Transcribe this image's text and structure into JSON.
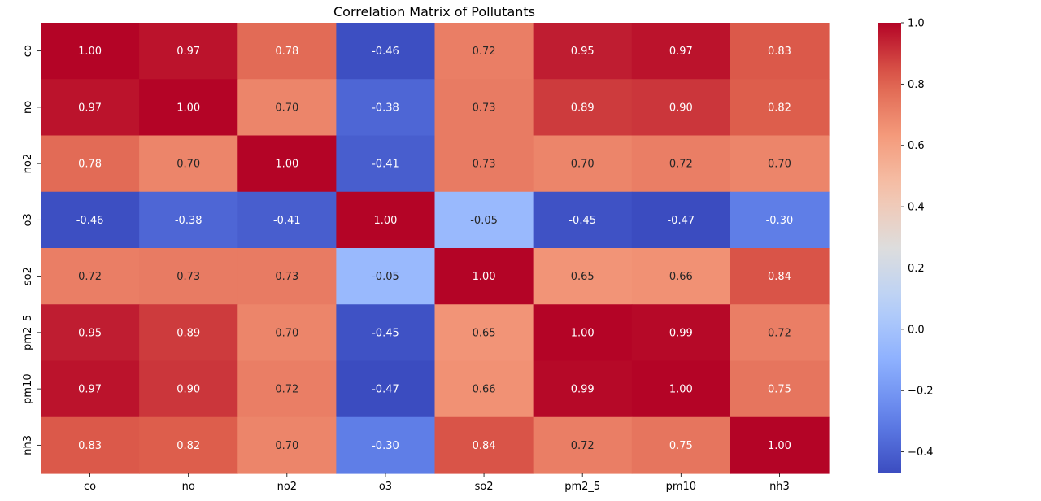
{
  "chart_data": {
    "type": "heatmap",
    "title": "Correlation Matrix of Pollutants",
    "xlabel": "",
    "ylabel": "",
    "x_categories": [
      "co",
      "no",
      "no2",
      "o3",
      "so2",
      "pm2_5",
      "pm10",
      "nh3"
    ],
    "y_categories": [
      "co",
      "no",
      "no2",
      "o3",
      "so2",
      "pm2_5",
      "pm10",
      "nh3"
    ],
    "values": [
      [
        1.0,
        0.97,
        0.78,
        -0.46,
        0.72,
        0.95,
        0.97,
        0.83
      ],
      [
        0.97,
        1.0,
        0.7,
        -0.38,
        0.73,
        0.89,
        0.9,
        0.82
      ],
      [
        0.78,
        0.7,
        1.0,
        -0.41,
        0.73,
        0.7,
        0.72,
        0.7
      ],
      [
        -0.46,
        -0.38,
        -0.41,
        1.0,
        -0.05,
        -0.45,
        -0.47,
        -0.3
      ],
      [
        0.72,
        0.73,
        0.73,
        -0.05,
        1.0,
        0.65,
        0.66,
        0.84
      ],
      [
        0.95,
        0.89,
        0.7,
        -0.45,
        0.65,
        1.0,
        0.99,
        0.72
      ],
      [
        0.97,
        0.9,
        0.72,
        -0.47,
        0.66,
        0.99,
        1.0,
        0.75
      ],
      [
        0.83,
        0.82,
        0.7,
        -0.3,
        0.84,
        0.72,
        0.75,
        1.0
      ]
    ],
    "annotations_format": "0.00",
    "colormap": "coolwarm",
    "color_range": [
      -0.47,
      1.0
    ],
    "colorbar": {
      "ticks": [
        1.0,
        0.8,
        0.6,
        0.4,
        0.2,
        0.0,
        -0.2,
        -0.4
      ],
      "tick_labels": [
        "1.0",
        "0.8",
        "0.6",
        "0.4",
        "0.2",
        "0.0",
        "−0.2",
        "−0.4"
      ],
      "position": "right"
    },
    "grid": false
  }
}
